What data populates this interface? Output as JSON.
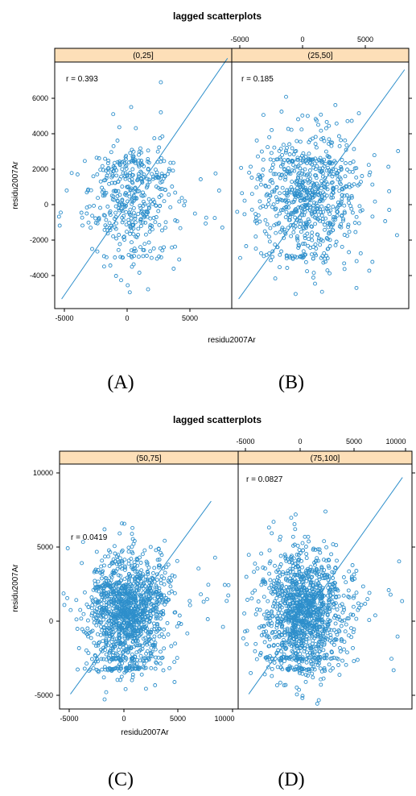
{
  "figures": [
    {
      "title": "lagged scatterplots",
      "xlabel": "residu2007Ar",
      "ylabel": "residu2007Ar",
      "captions": [
        "(A)",
        "(B)"
      ],
      "bottom_ticks": [
        "-5000",
        "0",
        "5000"
      ],
      "top_ticks": [
        "-5000",
        "0",
        "5000"
      ],
      "left_ticks": [
        "-4000",
        "-2000",
        "0",
        "2000",
        "4000",
        "6000"
      ]
    },
    {
      "title": "lagged scatterplots",
      "xlabel": "residu2007Ar",
      "ylabel": "residu2007Ar",
      "captions": [
        "(C)",
        "(D)"
      ],
      "bottom_ticks": [
        "-5000",
        "0",
        "5000",
        "10000"
      ],
      "top_ticks": [
        "-5000",
        "0",
        "5000",
        "10000"
      ],
      "left_ticks": [
        "-5000",
        "0",
        "5000",
        "10000"
      ]
    }
  ],
  "chart_data": [
    {
      "type": "scatter",
      "title": "lagged scatterplots",
      "panel": "(0,25]",
      "r_label": "r = 0.393",
      "xlabel": "residu2007Ar",
      "ylabel": "residu2007Ar",
      "xlim": [
        -5300,
        7500
      ],
      "ylim": [
        -5300,
        7600
      ],
      "x_ticks": [
        -5000,
        0,
        5000
      ],
      "y_ticks": [
        -4000,
        -2000,
        0,
        2000,
        4000,
        6000
      ],
      "fit_line": [
        [
          -4800,
          -4800
        ],
        [
          7200,
          7800
        ]
      ],
      "n_points": 450,
      "center": [
        300,
        500
      ],
      "spread": [
        1600,
        1700
      ],
      "seed": 11
    },
    {
      "type": "scatter",
      "title": "lagged scatterplots",
      "panel": "(25,50]",
      "r_label": "r = 0.185",
      "xlabel": "residu2007Ar",
      "ylabel": "residu2007Ar",
      "xlim": [
        -5300,
        7500
      ],
      "ylim": [
        -5300,
        7600
      ],
      "x_ticks": [
        -5000,
        0,
        5000
      ],
      "y_ticks": [
        -4000,
        -2000,
        0,
        2000,
        4000,
        6000
      ],
      "fit_line": [
        [
          -4800,
          -4800
        ],
        [
          7200,
          7200
        ]
      ],
      "n_points": 750,
      "center": [
        200,
        500
      ],
      "spread": [
        1800,
        1700
      ],
      "seed": 23
    },
    {
      "type": "scatter",
      "title": "lagged scatterplots",
      "panel": "(50,75]",
      "r_label": "r = 0.0419",
      "xlabel": "residu2007Ar",
      "ylabel": "residu2007Ar",
      "xlim": [
        -6000,
        10500
      ],
      "ylim": [
        -6000,
        10500
      ],
      "x_ticks": [
        -5000,
        0,
        5000,
        10000
      ],
      "y_ticks": [
        -5000,
        0,
        5000,
        10000
      ],
      "fit_line": [
        [
          -5000,
          -5000
        ],
        [
          8000,
          8000
        ]
      ],
      "n_points": 1300,
      "center": [
        300,
        700
      ],
      "spread": [
        1800,
        1900
      ],
      "seed": 37
    },
    {
      "type": "scatter",
      "title": "lagged scatterplots",
      "panel": "(75,100]",
      "r_label": "r = 0.0827",
      "xlabel": "residu2007Ar",
      "ylabel": "residu2007Ar",
      "xlim": [
        -6000,
        10500
      ],
      "ylim": [
        -6000,
        10500
      ],
      "x_ticks": [
        -5000,
        0,
        5000,
        10000
      ],
      "y_ticks": [
        -5000,
        0,
        5000,
        10000
      ],
      "fit_line": [
        [
          -5000,
          -5000
        ],
        [
          9600,
          9600
        ]
      ],
      "n_points": 1300,
      "center": [
        200,
        700
      ],
      "spread": [
        1900,
        2000
      ],
      "seed": 53
    }
  ]
}
